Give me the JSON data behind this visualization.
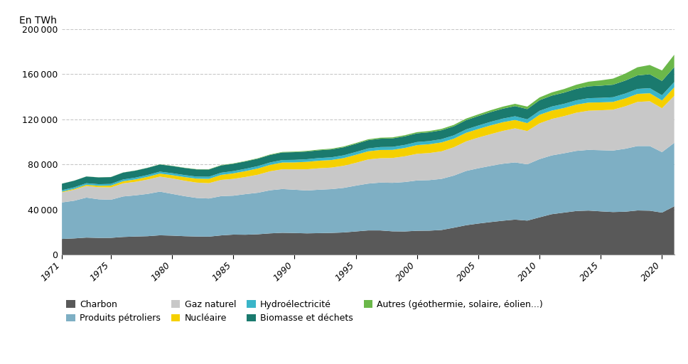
{
  "years": [
    1971,
    1972,
    1973,
    1974,
    1975,
    1976,
    1977,
    1978,
    1979,
    1980,
    1981,
    1982,
    1983,
    1984,
    1985,
    1986,
    1987,
    1988,
    1989,
    1990,
    1991,
    1992,
    1993,
    1994,
    1995,
    1996,
    1997,
    1998,
    1999,
    2000,
    2001,
    2002,
    2003,
    2004,
    2005,
    2006,
    2007,
    2008,
    2009,
    2010,
    2011,
    2012,
    2013,
    2014,
    2015,
    2016,
    2017,
    2018,
    2019,
    2020,
    2021
  ],
  "charbon": [
    14054,
    14530,
    15270,
    14980,
    15020,
    15820,
    16200,
    16500,
    17300,
    17000,
    16500,
    16200,
    16100,
    17200,
    17900,
    17800,
    18200,
    19000,
    19500,
    19300,
    19000,
    19200,
    19400,
    19800,
    20700,
    21600,
    21600,
    20800,
    20700,
    21300,
    21400,
    22000,
    24000,
    26200,
    27700,
    29000,
    30200,
    31200,
    30300,
    33200,
    36000,
    37400,
    38800,
    39200,
    38500,
    37900,
    38200,
    39300,
    39100,
    37400,
    43000
  ],
  "petrole": [
    32380,
    33400,
    35450,
    34200,
    33800,
    35900,
    36500,
    37500,
    38700,
    37000,
    35500,
    34200,
    33800,
    34800,
    34500,
    36000,
    36800,
    38200,
    38800,
    38400,
    38000,
    38500,
    38800,
    39500,
    40600,
    41500,
    42400,
    43000,
    43800,
    44600,
    44800,
    45300,
    46200,
    48100,
    49000,
    49800,
    50500,
    50700,
    49900,
    51600,
    52100,
    52600,
    53300,
    53800,
    54200,
    54500,
    55800,
    57100,
    57300,
    53600,
    56200
  ],
  "gaz": [
    8900,
    9700,
    10300,
    10700,
    10900,
    11600,
    12000,
    12700,
    13300,
    13700,
    13700,
    13600,
    13600,
    14400,
    14900,
    15200,
    16000,
    16800,
    17500,
    18000,
    18800,
    19000,
    19100,
    19600,
    20200,
    21400,
    21600,
    22000,
    22800,
    23600,
    24000,
    24400,
    25100,
    26200,
    27200,
    28100,
    29100,
    30200,
    29500,
    31700,
    32300,
    32900,
    33800,
    34700,
    35400,
    36200,
    37600,
    39100,
    39700,
    38900,
    41700
  ],
  "nucleaire": [
    600,
    800,
    1050,
    1300,
    1600,
    1900,
    2100,
    2400,
    2700,
    2900,
    3200,
    3500,
    3800,
    4400,
    4900,
    5200,
    5500,
    5700,
    6000,
    6200,
    6600,
    6700,
    6700,
    6800,
    7100,
    7200,
    7300,
    7200,
    7400,
    7700,
    7800,
    7900,
    7600,
    7600,
    7600,
    7800,
    7700,
    7400,
    7000,
    7600,
    7400,
    7200,
    7200,
    7200,
    7000,
    6900,
    7000,
    7100,
    7100,
    6900,
    7500
  ],
  "hydro": [
    1300,
    1350,
    1380,
    1420,
    1500,
    1560,
    1600,
    1650,
    1700,
    1750,
    1800,
    1820,
    1900,
    1950,
    2000,
    2050,
    2100,
    2150,
    2200,
    2250,
    2300,
    2350,
    2400,
    2450,
    2500,
    2550,
    2600,
    2680,
    2700,
    2750,
    2800,
    2900,
    2950,
    3000,
    3050,
    3150,
    3200,
    3300,
    3350,
    3500,
    3600,
    3700,
    3800,
    3900,
    4000,
    4150,
    4300,
    4400,
    4500,
    4600,
    4700
  ],
  "biomasse": [
    5800,
    5880,
    5950,
    6000,
    6050,
    6100,
    6200,
    6300,
    6350,
    6350,
    6300,
    6350,
    6400,
    6450,
    6500,
    6550,
    6600,
    6650,
    6700,
    6800,
    6850,
    6900,
    7000,
    7100,
    7200,
    7300,
    7400,
    7500,
    7600,
    7700,
    7800,
    7900,
    8000,
    8200,
    8400,
    8600,
    8800,
    9000,
    9100,
    9400,
    9700,
    9900,
    10200,
    10500,
    10800,
    11100,
    11500,
    12000,
    12300,
    12700,
    13200
  ],
  "autres": [
    50,
    60,
    70,
    80,
    90,
    100,
    120,
    140,
    160,
    180,
    200,
    230,
    260,
    290,
    320,
    350,
    380,
    420,
    460,
    500,
    550,
    600,
    650,
    700,
    750,
    800,
    860,
    920,
    980,
    1050,
    1100,
    1200,
    1300,
    1400,
    1520,
    1650,
    1800,
    2000,
    2200,
    2450,
    2800,
    3200,
    3600,
    4100,
    4700,
    5400,
    6200,
    7200,
    8200,
    9300,
    11000
  ],
  "colors": {
    "charbon": "#595959",
    "petrole": "#7eafc4",
    "gaz": "#c8c8c8",
    "nucleaire": "#f5d000",
    "hydro": "#3ab5c8",
    "biomasse": "#1a7a6e",
    "autres": "#6bb84a"
  },
  "labels": {
    "charbon": "Charbon",
    "petrole": "Produits pétroliers",
    "gaz": "Gaz naturel",
    "nucleaire": "Nucléaire",
    "hydro": "Hydroélectricité",
    "biomasse": "Biomasse et déchets",
    "autres": "Autres (géothermie, solaire, éolien...)"
  },
  "ylabel_top": "En TWh",
  "ylim": [
    0,
    200000
  ],
  "yticks": [
    0,
    40000,
    80000,
    120000,
    160000,
    200000
  ],
  "xticks": [
    1971,
    1975,
    1980,
    1985,
    1990,
    1995,
    2000,
    2005,
    2010,
    2015,
    2020
  ],
  "background_color": "#ffffff",
  "grid_color": "#c8c8c8"
}
